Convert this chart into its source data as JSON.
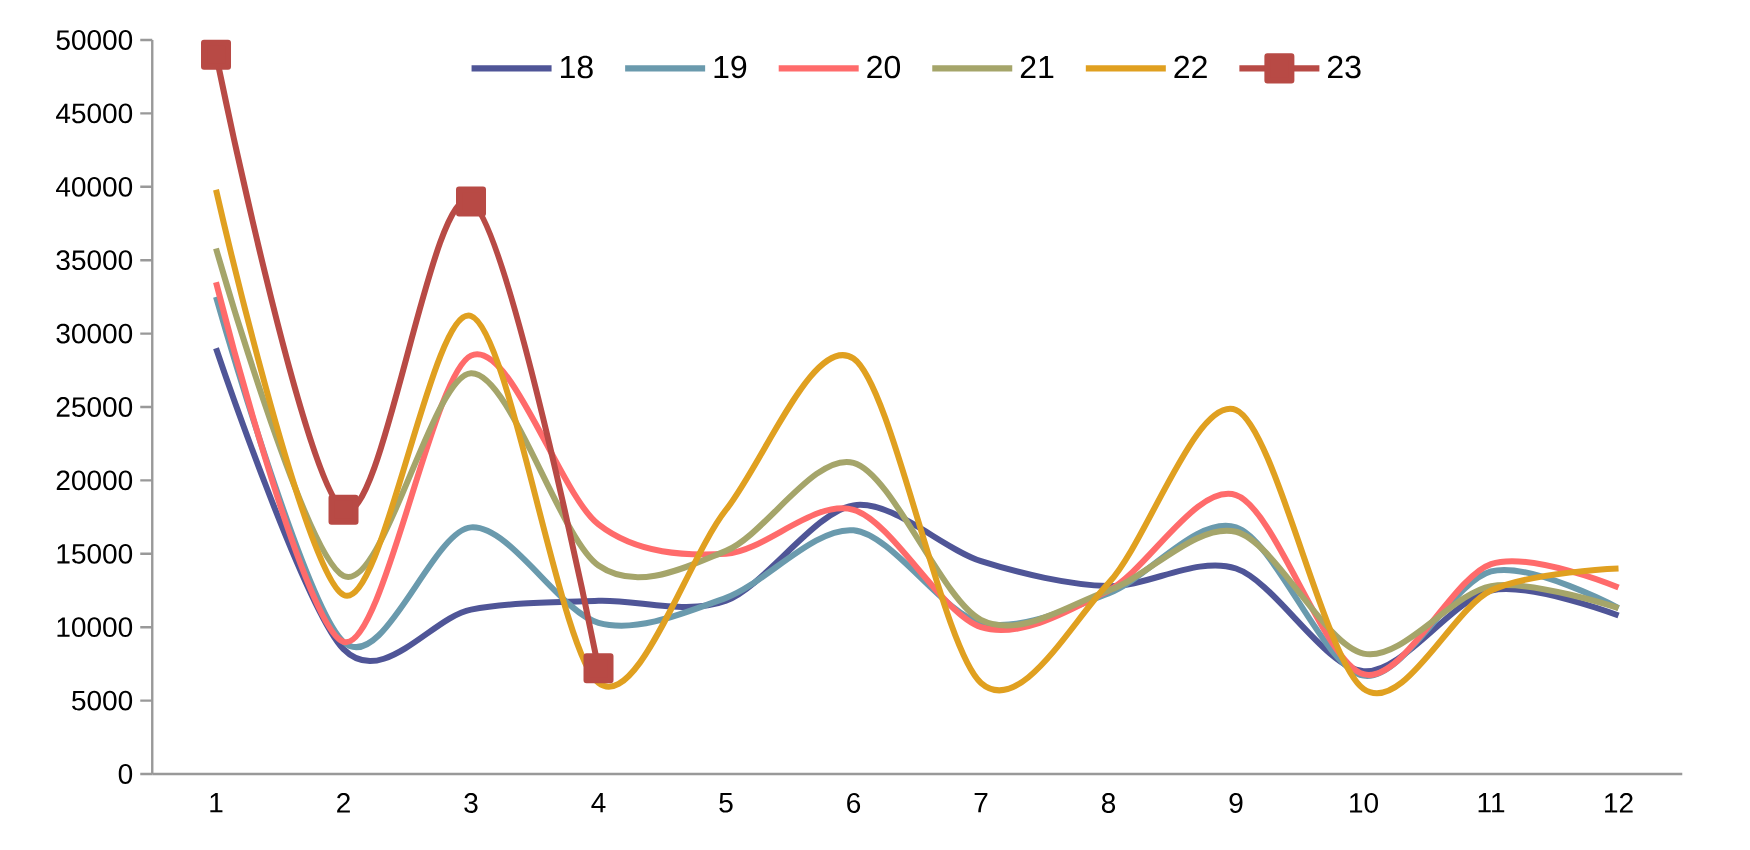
{
  "chart_data": {
    "type": "line",
    "categories": [
      "1",
      "2",
      "3",
      "4",
      "5",
      "6",
      "7",
      "8",
      "9",
      "10",
      "11",
      "12"
    ],
    "series": [
      {
        "name": "18",
        "color": "#4f5597",
        "marker": "none",
        "values": [
          29000,
          8500,
          11200,
          11800,
          11800,
          18300,
          14500,
          12800,
          14000,
          7000,
          12500,
          10800
        ]
      },
      {
        "name": "19",
        "color": "#6a9aad",
        "marker": "none",
        "values": [
          32500,
          9000,
          16800,
          10300,
          12000,
          16600,
          10300,
          12300,
          16800,
          6700,
          13800,
          11300
        ]
      },
      {
        "name": "20",
        "color": "#ff6b6b",
        "marker": "none",
        "values": [
          33500,
          9000,
          28500,
          17000,
          15000,
          18000,
          10000,
          12500,
          19000,
          6800,
          14300,
          12700
        ]
      },
      {
        "name": "21",
        "color": "#a5a56a",
        "marker": "none",
        "values": [
          35800,
          13500,
          27300,
          14200,
          15200,
          21200,
          10500,
          12500,
          16500,
          8200,
          12800,
          11300
        ]
      },
      {
        "name": "22",
        "color": "#e0a020",
        "marker": "none",
        "values": [
          39800,
          12200,
          31200,
          6200,
          18000,
          28300,
          6200,
          13000,
          24800,
          5800,
          12500,
          14000
        ]
      },
      {
        "name": "23",
        "color": "#b84a45",
        "marker": "square",
        "values": [
          49000,
          18000,
          39000,
          7200,
          null,
          null,
          null,
          null,
          null,
          null,
          null,
          null
        ]
      }
    ],
    "ylim": [
      0,
      50000
    ],
    "yticks": [
      0,
      5000,
      10000,
      15000,
      20000,
      25000,
      30000,
      35000,
      40000,
      45000,
      50000
    ],
    "grid": false,
    "legend": "top",
    "line_style": "solid"
  }
}
